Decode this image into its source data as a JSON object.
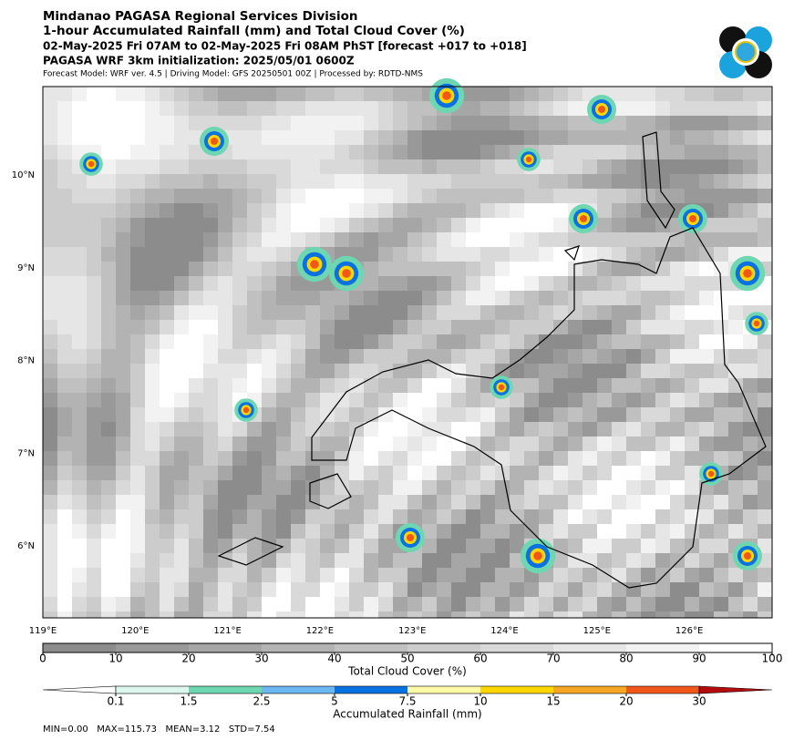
{
  "header": {
    "lines": [
      "Mindanao PAGASA Regional Services Division",
      "1-hour Accumulated Rainfall (mm) and Total Cloud Cover (%)",
      "02-May-2025 Fri 07AM to 02-May-2025 Fri 08AM PhST [forecast +017 to +018]",
      "PAGASA WRF 3km initialization: 2025/05/01 0600Z",
      "Forecast Model: WRF ver. 4.5 | Driving Model: GFS 20250501 00Z | Processed by: RDTD-NMS"
    ]
  },
  "map": {
    "lat_labels": [
      "10°N",
      "9°N",
      "8°N",
      "7°N",
      "6°N"
    ],
    "lon_labels": [
      "119°E",
      "120°E",
      "121°E",
      "122°E",
      "123°E",
      "124°E",
      "125°E",
      "126°E"
    ]
  },
  "cloud_colorbar": {
    "label": "Total Cloud Cover (%)",
    "ticks": [
      0,
      10,
      20,
      30,
      40,
      50,
      60,
      70,
      80,
      90,
      100
    ],
    "colors": [
      "#8c8c8c",
      "#999999",
      "#a6a6a6",
      "#b3b3b3",
      "#c0c0c0",
      "#cccccc",
      "#d9d9d9",
      "#e6e6e6",
      "#f2f2f2",
      "#ffffff"
    ]
  },
  "rain_colorbar": {
    "label": "Accumulated Rainfall (mm)",
    "ticks": [
      0.1,
      1.5,
      2.5,
      5,
      7.5,
      10,
      15,
      20,
      30
    ],
    "colors": [
      "#ffffff",
      "#dcf7ee",
      "#6fd6b2",
      "#6cb6f2",
      "#0a72e0",
      "#fff9a8",
      "#ffd700",
      "#f5a623",
      "#f2571a",
      "#b40c0c"
    ]
  },
  "stats": "MIN=0.00   MAX=115.73   MEAN=3.12   STD=7.54"
}
